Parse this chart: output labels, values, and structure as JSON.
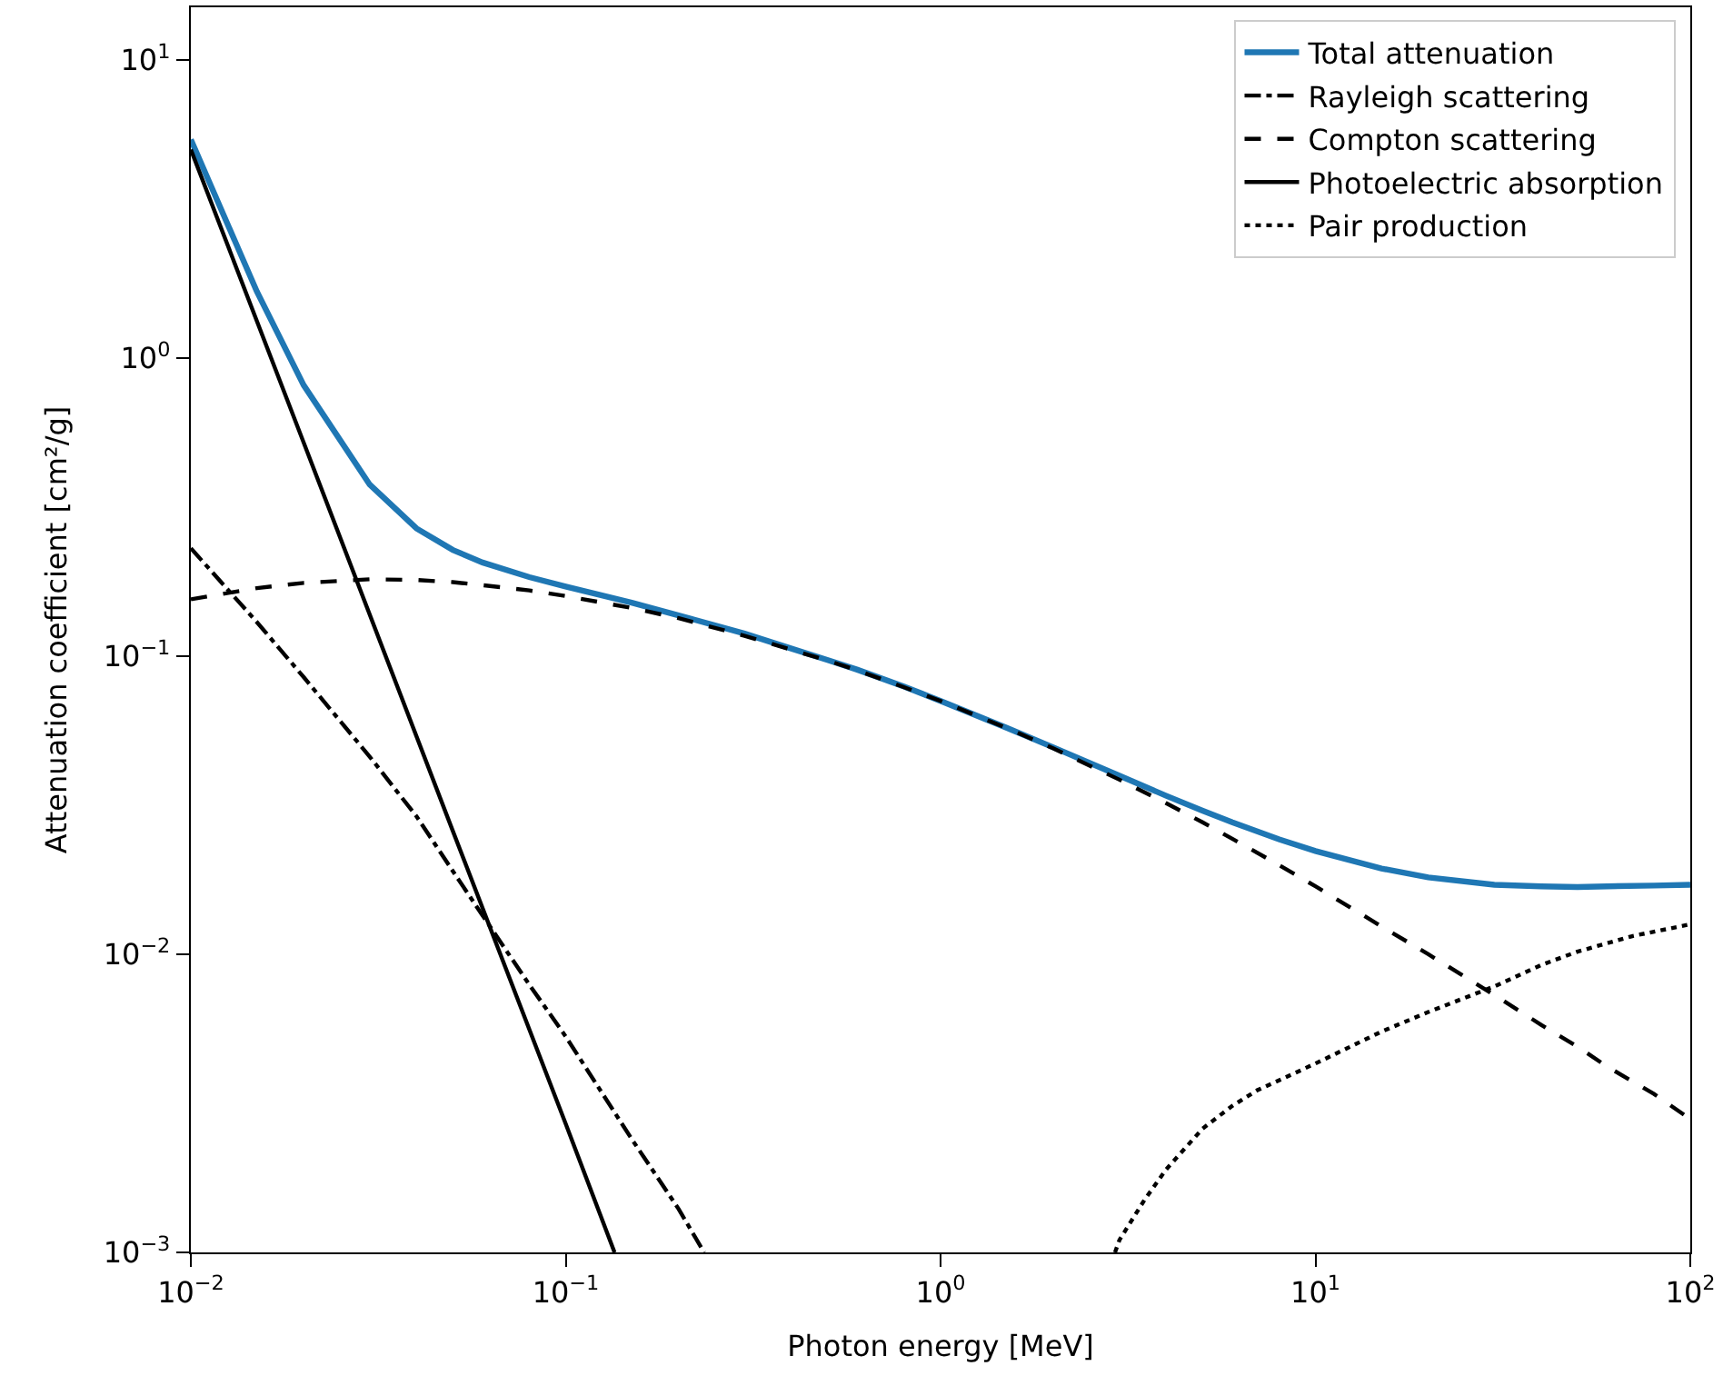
{
  "chart_data": {
    "type": "line",
    "xlabel": "Photon energy [MeV]",
    "ylabel": "Attenuation coefficient [cm²/g]",
    "log": "xy",
    "legend": "top right",
    "xlim": [
      0.01,
      100
    ],
    "ylim": [
      0.001,
      15
    ],
    "xticks": [
      {
        "value": 0.01,
        "label": "10$^{−2}$"
      },
      {
        "value": 0.1,
        "label": "10$^{−1}$"
      },
      {
        "value": 1,
        "label": "10$^{0}$"
      },
      {
        "value": 10,
        "label": "10$^{1}$"
      },
      {
        "value": 100,
        "label": "10$^{2}$"
      }
    ],
    "yticks": [
      {
        "value": 0.001,
        "label": "10$^{−3}$"
      },
      {
        "value": 0.01,
        "label": "10$^{−2}$"
      },
      {
        "value": 0.1,
        "label": "10$^{−1}$"
      },
      {
        "value": 1,
        "label": "10$^{0}$"
      },
      {
        "value": 10,
        "label": "10$^{1}$"
      }
    ],
    "series": [
      {
        "name": "Total attenuation",
        "color": "#1f77b4",
        "line_style": "solid",
        "x": [
          0.01,
          0.015,
          0.02,
          0.03,
          0.04,
          0.05,
          0.06,
          0.08,
          0.1,
          0.15,
          0.2,
          0.3,
          0.4,
          0.5,
          0.6,
          0.8,
          1,
          1.5,
          2,
          3,
          4,
          5,
          6,
          8,
          10,
          15,
          20,
          30,
          40,
          50,
          60,
          80,
          100
        ],
        "values": [
          5.4,
          1.67,
          0.81,
          0.376,
          0.268,
          0.227,
          0.206,
          0.184,
          0.171,
          0.151,
          0.137,
          0.119,
          0.106,
          0.097,
          0.09,
          0.079,
          0.0707,
          0.0575,
          0.0494,
          0.0397,
          0.034,
          0.0303,
          0.0277,
          0.0243,
          0.0222,
          0.0194,
          0.0181,
          0.0171,
          0.0169,
          0.0168,
          0.0169,
          0.017,
          0.0171
        ]
      },
      {
        "name": "Rayleigh scattering",
        "color": "#000000",
        "line_style": "dashdot",
        "x": [
          0.01,
          0.015,
          0.02,
          0.03,
          0.04,
          0.05,
          0.06,
          0.08,
          0.1,
          0.15,
          0.2,
          0.234
        ],
        "values": [
          0.23,
          0.13,
          0.085,
          0.046,
          0.029,
          0.019,
          0.0135,
          0.0079,
          0.0053,
          0.0024,
          0.0014,
          0.001
        ]
      },
      {
        "name": "Compton scattering",
        "color": "#000000",
        "line_style": "dashed",
        "x": [
          0.01,
          0.015,
          0.02,
          0.03,
          0.04,
          0.05,
          0.06,
          0.08,
          0.1,
          0.15,
          0.2,
          0.3,
          0.4,
          0.5,
          0.6,
          0.8,
          1,
          1.5,
          2,
          3,
          4,
          5,
          6,
          8,
          10,
          15,
          20,
          30,
          40,
          50,
          60,
          80,
          100
        ],
        "values": [
          0.155,
          0.169,
          0.176,
          0.181,
          0.18,
          0.177,
          0.173,
          0.166,
          0.159,
          0.145,
          0.134,
          0.117,
          0.105,
          0.0966,
          0.0895,
          0.0786,
          0.0707,
          0.0574,
          0.049,
          0.0385,
          0.0321,
          0.0277,
          0.0244,
          0.0199,
          0.0169,
          0.0124,
          0.01,
          0.0073,
          0.0058,
          0.0049,
          0.0042,
          0.0034,
          0.0028
        ]
      },
      {
        "name": "Photoelectric absorption",
        "color": "#000000",
        "line_style": "solid",
        "x": [
          0.01,
          0.02,
          0.05,
          0.1,
          0.135
        ],
        "values": [
          5.0,
          0.52,
          0.0259,
          0.0027,
          0.001
        ]
      },
      {
        "name": "Pair production",
        "color": "#000000",
        "line_style": "dotted",
        "x": [
          2.92,
          3,
          3.5,
          4,
          5,
          6,
          7,
          10,
          15,
          20,
          30,
          40,
          50,
          70,
          100
        ],
        "values": [
          0.001,
          0.0011,
          0.0015,
          0.0019,
          0.0026,
          0.0031,
          0.0035,
          0.0043,
          0.0055,
          0.0064,
          0.0078,
          0.0092,
          0.0102,
          0.0115,
          0.0126
        ]
      }
    ]
  }
}
